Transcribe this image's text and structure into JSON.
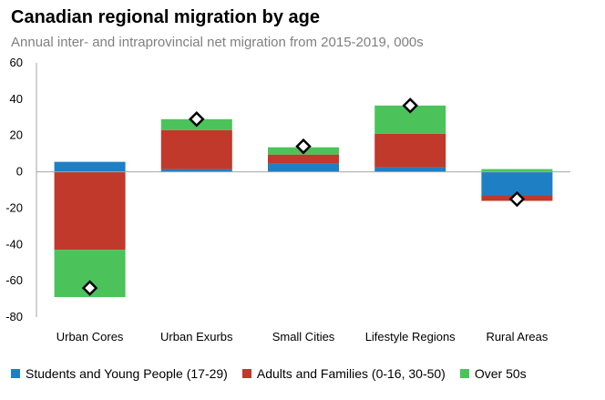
{
  "chart_data": {
    "type": "bar",
    "stacked": true,
    "title": "Canadian regional migration by age",
    "subtitle": "Annual inter- and intraprovincial net migration from 2015-2019, 000s",
    "categories": [
      "Urban Cores",
      "Urban Exurbs",
      "Small Cities",
      "Lifestyle Regions",
      "Rural Areas"
    ],
    "series": [
      {
        "name": "Students and Young People (17-29)",
        "color": "#1f7fc4",
        "values": [
          5.5,
          1.5,
          4.5,
          2.5,
          -13
        ]
      },
      {
        "name": "Adults and Families (0-16, 30-50)",
        "color": "#c0392b",
        "values": [
          -43,
          21.5,
          5,
          18.5,
          -3
        ]
      },
      {
        "name": "Over 50s",
        "color": "#4cc35a",
        "values": [
          -26,
          6,
          4,
          15.5,
          1.5
        ]
      }
    ],
    "markers": {
      "shape": "diamond",
      "values": [
        -64,
        29,
        14,
        36.5,
        -15
      ]
    },
    "ylim": [
      -80,
      60
    ],
    "yticks": [
      60,
      40,
      20,
      0,
      -20,
      -40,
      -60,
      -80
    ],
    "grid": false,
    "legend_position": "bottom"
  }
}
